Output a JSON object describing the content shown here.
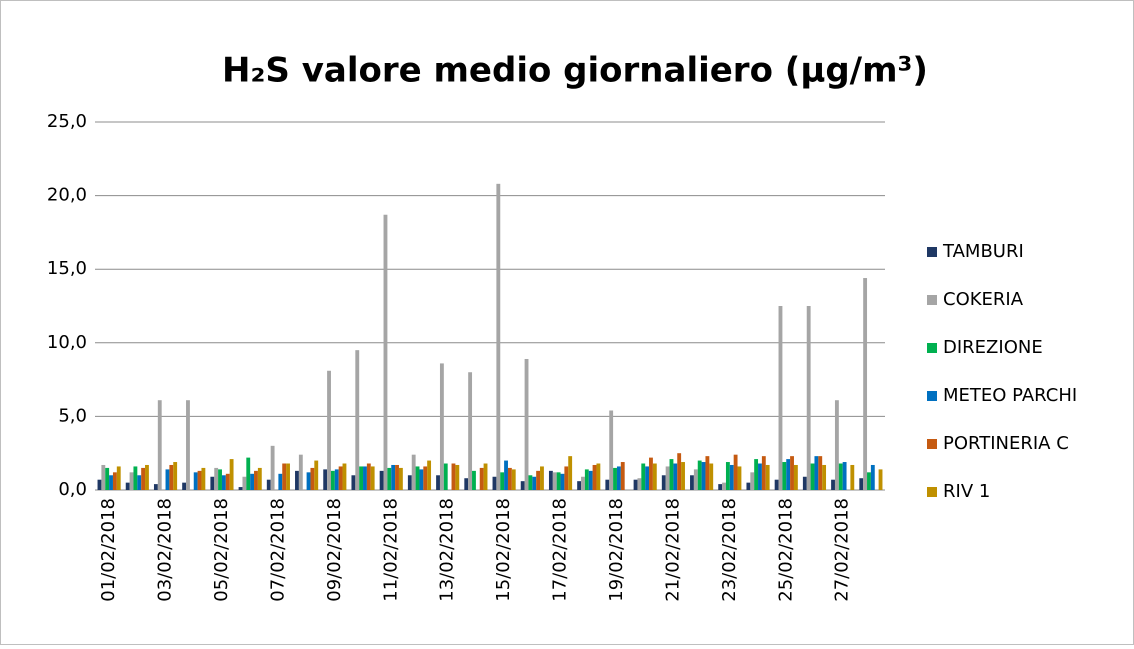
{
  "chart_data": {
    "type": "bar",
    "title": "H₂S valore medio giornaliero (µg/m³)",
    "categories": [
      "01/02/2018",
      null,
      "03/02/2018",
      null,
      "05/02/2018",
      null,
      "07/02/2018",
      null,
      "09/02/2018",
      null,
      "11/02/2018",
      null,
      "13/02/2018",
      null,
      "15/02/2018",
      null,
      "17/02/2018",
      null,
      "19/02/2018",
      null,
      "21/02/2018",
      null,
      "23/02/2018",
      null,
      "25/02/2018",
      null,
      "27/02/2018",
      null
    ],
    "series": [
      {
        "name": "TAMBURI",
        "color": "#1f3864",
        "values": [
          0.7,
          0.5,
          0.4,
          0.5,
          0.9,
          0.2,
          0.7,
          1.3,
          1.4,
          1.0,
          1.3,
          1.0,
          1.0,
          0.8,
          0.9,
          0.6,
          1.3,
          0.6,
          0.7,
          0.7,
          1.0,
          1.0,
          0.4,
          0.5,
          0.7,
          0.9,
          0.7,
          0.8
        ]
      },
      {
        "name": "COKERIA",
        "color": "#a5a5a5",
        "values": [
          1.7,
          1.2,
          6.1,
          6.1,
          1.5,
          0.9,
          3.0,
          2.4,
          8.1,
          9.5,
          18.7,
          2.4,
          8.6,
          8.0,
          20.8,
          8.9,
          1.2,
          0.9,
          5.4,
          0.8,
          1.6,
          1.4,
          0.5,
          1.2,
          12.5,
          12.5,
          6.1,
          14.4
        ]
      },
      {
        "name": "DIREZIONE",
        "color": "#00b050",
        "values": [
          1.5,
          1.6,
          null,
          null,
          1.4,
          2.2,
          null,
          null,
          1.3,
          1.6,
          1.5,
          1.6,
          1.8,
          1.3,
          1.2,
          1.0,
          1.2,
          1.4,
          1.5,
          1.8,
          2.1,
          2.0,
          1.9,
          2.1,
          1.9,
          1.8,
          1.8,
          1.2
        ]
      },
      {
        "name": "METEO PARCHI",
        "color": "#0070c0",
        "values": [
          1.0,
          1.0,
          1.4,
          1.2,
          1.0,
          1.1,
          1.1,
          1.2,
          1.4,
          1.6,
          1.7,
          1.4,
          null,
          null,
          2.0,
          0.9,
          1.1,
          1.3,
          1.6,
          1.6,
          1.8,
          1.9,
          1.7,
          1.8,
          2.1,
          2.3,
          1.9,
          1.7
        ]
      },
      {
        "name": "PORTINERIA C",
        "color": "#c55a11",
        "values": [
          1.2,
          1.5,
          1.7,
          1.3,
          1.1,
          1.3,
          1.8,
          1.5,
          1.6,
          1.8,
          1.7,
          1.6,
          1.8,
          1.5,
          1.5,
          1.3,
          1.6,
          1.7,
          1.9,
          2.2,
          2.5,
          2.3,
          2.4,
          2.3,
          2.3,
          2.3,
          null,
          null
        ]
      },
      {
        "name": "RIV 1",
        "color": "#bf9000",
        "values": [
          1.6,
          1.7,
          1.9,
          1.5,
          2.1,
          1.5,
          1.8,
          2.0,
          1.8,
          1.6,
          1.5,
          2.0,
          1.7,
          1.8,
          1.4,
          1.6,
          2.3,
          1.8,
          null,
          1.8,
          1.9,
          1.8,
          1.6,
          1.7,
          1.7,
          1.7,
          1.7,
          1.4
        ]
      }
    ],
    "ylim": [
      0,
      25
    ],
    "yticks": [
      {
        "value": 0,
        "label": "0,0"
      },
      {
        "value": 5,
        "label": "5,0"
      },
      {
        "value": 10,
        "label": "10,0"
      },
      {
        "value": 15,
        "label": "15,0"
      },
      {
        "value": 20,
        "label": "20,0"
      },
      {
        "value": 25,
        "label": "25,0"
      }
    ],
    "grid": true,
    "legend": "right"
  }
}
